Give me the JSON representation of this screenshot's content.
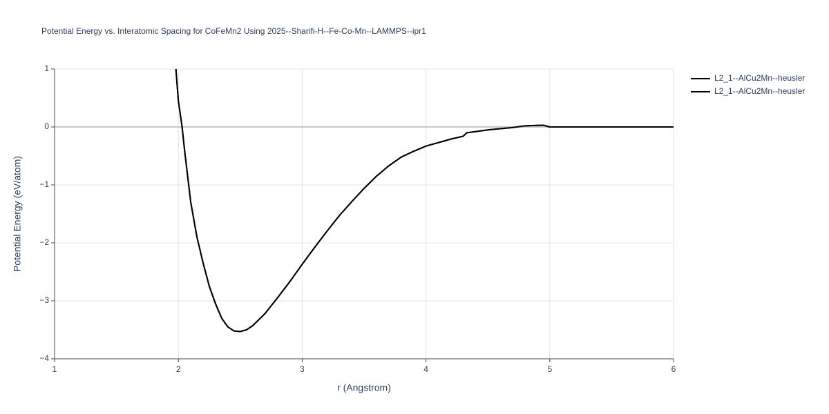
{
  "chart_data": {
    "type": "line",
    "title": "Potential Energy vs. Interatomic Spacing for CoFeMn2 Using 2025--Sharifi-H--Fe-Co-Mn--LAMMPS--ipr1",
    "x_label": "r (Angstrom)",
    "y_label": "Potential Energy (eV/atom)",
    "xlim": [
      1,
      6
    ],
    "ylim": [
      -4,
      1
    ],
    "xticks": [
      1,
      2,
      3,
      4,
      5,
      6
    ],
    "yticks": [
      {
        "value": -4,
        "label": "−4"
      },
      {
        "value": -3,
        "label": "−3"
      },
      {
        "value": -2,
        "label": "−2"
      },
      {
        "value": -1,
        "label": "−1"
      },
      0,
      1
    ],
    "grid": true,
    "x": [
      1.98,
      2.0,
      2.03,
      2.05,
      2.1,
      2.15,
      2.2,
      2.25,
      2.3,
      2.35,
      2.4,
      2.45,
      2.5,
      2.55,
      2.6,
      2.7,
      2.8,
      2.9,
      3.0,
      3.1,
      3.2,
      3.3,
      3.4,
      3.5,
      3.6,
      3.7,
      3.8,
      3.9,
      4.0,
      4.1,
      4.2,
      4.3,
      4.33,
      4.4,
      4.5,
      4.6,
      4.7,
      4.8,
      4.95,
      5.0,
      6.0
    ],
    "series": [
      {
        "name": "L2_1--AlCu2Mn--heusler",
        "color": "#000000",
        "values": [
          1.0,
          0.45,
          0.0,
          -0.4,
          -1.3,
          -1.9,
          -2.35,
          -2.75,
          -3.05,
          -3.3,
          -3.45,
          -3.52,
          -3.53,
          -3.5,
          -3.43,
          -3.22,
          -2.95,
          -2.67,
          -2.37,
          -2.08,
          -1.8,
          -1.53,
          -1.29,
          -1.06,
          -0.85,
          -0.67,
          -0.52,
          -0.42,
          -0.33,
          -0.27,
          -0.21,
          -0.16,
          -0.1,
          -0.08,
          -0.05,
          -0.03,
          -0.01,
          0.02,
          0.03,
          0.0,
          0.0
        ]
      },
      {
        "name": "L2_1--AlCu2Mn--heusler",
        "color": "#000000",
        "values": [
          1.0,
          0.45,
          0.0,
          -0.4,
          -1.3,
          -1.9,
          -2.35,
          -2.75,
          -3.05,
          -3.3,
          -3.45,
          -3.52,
          -3.53,
          -3.5,
          -3.43,
          -3.22,
          -2.95,
          -2.67,
          -2.37,
          -2.08,
          -1.8,
          -1.53,
          -1.29,
          -1.06,
          -0.85,
          -0.67,
          -0.52,
          -0.42,
          -0.33,
          -0.27,
          -0.21,
          -0.16,
          -0.1,
          -0.08,
          -0.05,
          -0.03,
          -0.01,
          0.02,
          0.03,
          0.0,
          0.0
        ]
      }
    ]
  }
}
